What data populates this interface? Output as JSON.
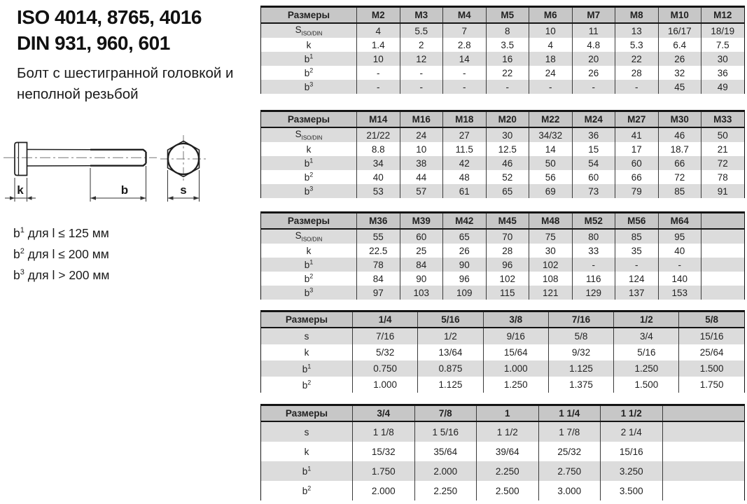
{
  "colors": {
    "header_bg": "#c7c7c7",
    "row_stripe": "#dcdcdc",
    "table_border": "#141414",
    "text": "#222222"
  },
  "header": {
    "title_line1": "ISO 4014, 8765, 4016",
    "title_line2": "DIN 931, 960, 601",
    "subtitle": "Болт с шестигранной головкой и неполной резьбой"
  },
  "drawing": {
    "dim_k": "k",
    "dim_b": "b",
    "dim_s": "s"
  },
  "notes": [
    {
      "base": "b",
      "sup": "1",
      "rest": " для l ≤ 125 мм"
    },
    {
      "base": "b",
      "sup": "2",
      "rest": " для l ≤ 200 мм"
    },
    {
      "base": "b",
      "sup": "3",
      "rest": " для l > 200 мм"
    }
  ],
  "tables": [
    {
      "header": [
        "Размеры",
        "M2",
        "M3",
        "M4",
        "M5",
        "M6",
        "M7",
        "M8",
        "M10",
        "M12"
      ],
      "rows": [
        {
          "label": {
            "base": "S",
            "sub": "ISO/DIN"
          },
          "cells": [
            "4",
            "5.5",
            "7",
            "8",
            "10",
            "11",
            "13",
            "16/17",
            "18/19"
          ]
        },
        {
          "label": {
            "base": "k"
          },
          "cells": [
            "1.4",
            "2",
            "2.8",
            "3.5",
            "4",
            "4.8",
            "5.3",
            "6.4",
            "7.5"
          ]
        },
        {
          "label": {
            "base": "b",
            "sup": "1"
          },
          "cells": [
            "10",
            "12",
            "14",
            "16",
            "18",
            "20",
            "22",
            "26",
            "30"
          ]
        },
        {
          "label": {
            "base": "b",
            "sup": "2"
          },
          "cells": [
            "-",
            "-",
            "-",
            "22",
            "24",
            "26",
            "28",
            "32",
            "36"
          ]
        },
        {
          "label": {
            "base": "b",
            "sup": "3"
          },
          "cells": [
            "-",
            "-",
            "-",
            "-",
            "-",
            "-",
            "-",
            "45",
            "49"
          ]
        }
      ]
    },
    {
      "header": [
        "Размеры",
        "M14",
        "M16",
        "M18",
        "M20",
        "M22",
        "M24",
        "M27",
        "M30",
        "M33"
      ],
      "rows": [
        {
          "label": {
            "base": "S",
            "sub": "ISO/DIN"
          },
          "cells": [
            "21/22",
            "24",
            "27",
            "30",
            "34/32",
            "36",
            "41",
            "46",
            "50"
          ]
        },
        {
          "label": {
            "base": "k"
          },
          "cells": [
            "8.8",
            "10",
            "11.5",
            "12.5",
            "14",
            "15",
            "17",
            "18.7",
            "21"
          ]
        },
        {
          "label": {
            "base": "b",
            "sup": "1"
          },
          "cells": [
            "34",
            "38",
            "42",
            "46",
            "50",
            "54",
            "60",
            "66",
            "72"
          ]
        },
        {
          "label": {
            "base": "b",
            "sup": "2"
          },
          "cells": [
            "40",
            "44",
            "48",
            "52",
            "56",
            "60",
            "66",
            "72",
            "78"
          ]
        },
        {
          "label": {
            "base": "b",
            "sup": "3"
          },
          "cells": [
            "53",
            "57",
            "61",
            "65",
            "69",
            "73",
            "79",
            "85",
            "91"
          ]
        }
      ]
    },
    {
      "header": [
        "Размеры",
        "M36",
        "M39",
        "M42",
        "M45",
        "M48",
        "M52",
        "M56",
        "M64",
        ""
      ],
      "rows": [
        {
          "label": {
            "base": "S",
            "sub": "ISO/DIN"
          },
          "cells": [
            "55",
            "60",
            "65",
            "70",
            "75",
            "80",
            "85",
            "95",
            ""
          ]
        },
        {
          "label": {
            "base": "k"
          },
          "cells": [
            "22.5",
            "25",
            "26",
            "28",
            "30",
            "33",
            "35",
            "40",
            ""
          ]
        },
        {
          "label": {
            "base": "b",
            "sup": "1"
          },
          "cells": [
            "78",
            "84",
            "90",
            "96",
            "102",
            "-",
            "-",
            "-",
            ""
          ]
        },
        {
          "label": {
            "base": "b",
            "sup": "2"
          },
          "cells": [
            "84",
            "90",
            "96",
            "102",
            "108",
            "116",
            "124",
            "140",
            ""
          ]
        },
        {
          "label": {
            "base": "b",
            "sup": "3"
          },
          "cells": [
            "97",
            "103",
            "109",
            "115",
            "121",
            "129",
            "137",
            "153",
            ""
          ]
        }
      ]
    },
    {
      "header": [
        "Размеры",
        "1/4",
        "5/16",
        "3/8",
        "7/16",
        "1/2",
        "5/8"
      ],
      "rows": [
        {
          "label": {
            "base": "s"
          },
          "cells": [
            "7/16",
            "1/2",
            "9/16",
            "5/8",
            "3/4",
            "15/16"
          ]
        },
        {
          "label": {
            "base": "k"
          },
          "cells": [
            "5/32",
            "13/64",
            "15/64",
            "9/32",
            "5/16",
            "25/64"
          ]
        },
        {
          "label": {
            "base": "b",
            "sup": "1"
          },
          "cells": [
            "0.750",
            "0.875",
            "1.000",
            "1.125",
            "1.250",
            "1.500"
          ]
        },
        {
          "label": {
            "base": "b",
            "sup": "2"
          },
          "cells": [
            "1.000",
            "1.125",
            "1.250",
            "1.375",
            "1.500",
            "1.750"
          ]
        }
      ]
    },
    {
      "header": [
        "Размеры",
        "3/4",
        "7/8",
        "1",
        "1 1/4",
        "1 1/2",
        ""
      ],
      "rows": [
        {
          "label": {
            "base": "s"
          },
          "cells": [
            "1 1/8",
            "1 5/16",
            "1 1/2",
            "1 7/8",
            "2 1/4",
            ""
          ]
        },
        {
          "label": {
            "base": "k"
          },
          "cells": [
            "15/32",
            "35/64",
            "39/64",
            "25/32",
            "15/16",
            ""
          ]
        },
        {
          "label": {
            "base": "b",
            "sup": "1"
          },
          "cells": [
            "1.750",
            "2.000",
            "2.250",
            "2.750",
            "3.250",
            ""
          ]
        },
        {
          "label": {
            "base": "b",
            "sup": "2"
          },
          "cells": [
            "2.000",
            "2.250",
            "2.500",
            "3.000",
            "3.500",
            ""
          ]
        }
      ]
    }
  ]
}
